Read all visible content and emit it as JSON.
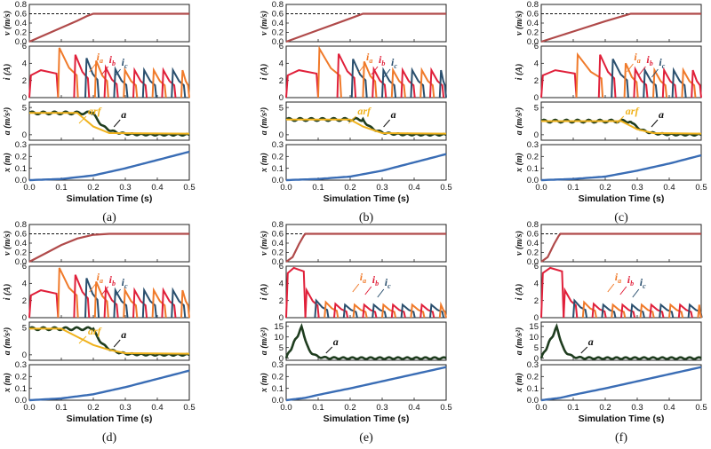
{
  "figure": {
    "ylabels": {
      "v": "v (m/s)",
      "i": "i (A)",
      "a": "a (m/s²)",
      "x": "x (m)"
    },
    "xlabel": "Simulation Time (s)",
    "colors": {
      "v": "#b04a4a",
      "x": "#3a6db5",
      "acc": "#1f3d1f",
      "arf": "#f0b21c",
      "ia": "#f07a2a",
      "ib": "#e0203a",
      "ic": "#2a4f6e"
    }
  },
  "chart_data": [
    {
      "type": "line",
      "caption": "(a)",
      "phase_time": 0.2,
      "arf_level": 4.0,
      "xlim": [
        0,
        0.5
      ],
      "xticks": [
        0.0,
        0.1,
        0.2,
        0.3,
        0.4,
        0.5
      ],
      "v": {
        "ylim": [
          0,
          0.8
        ],
        "yticks": [
          0.0,
          0.2,
          0.4,
          0.6,
          0.8
        ],
        "reference": 0.6,
        "series": [
          {
            "x": [
              0,
              0.05,
              0.1,
              0.15,
              0.18,
              0.2,
              0.5
            ],
            "y": [
              0,
              0.15,
              0.3,
              0.45,
              0.55,
              0.6,
              0.6
            ]
          }
        ]
      },
      "i": {
        "ylim": [
          0,
          6
        ],
        "yticks": [
          0,
          2,
          4,
          6
        ],
        "labels": [
          "ia",
          "ib",
          "ic"
        ],
        "pulses_t": [
          0.09,
          0.14,
          0.175,
          0.205,
          0.235,
          0.265,
          0.295,
          0.325,
          0.355,
          0.385,
          0.415,
          0.445,
          0.475
        ],
        "pulses_peak": [
          5.8,
          5.0,
          4.6,
          4.3,
          3.5,
          3.3,
          3.2,
          3.2,
          3.2,
          3.2,
          3.2,
          3.2,
          3.2
        ]
      },
      "a": {
        "ylim": [
          -1,
          6
        ],
        "yticks": [
          0,
          5
        ],
        "labels": [
          "arf",
          "a"
        ],
        "arf": {
          "x": [
            0,
            0.15,
            0.2,
            0.25,
            0.5
          ],
          "y": [
            4.0,
            4.0,
            1.5,
            0.3,
            0.2
          ]
        }
      },
      "x": {
        "ylim": [
          0,
          0.3
        ],
        "yticks": [
          0.0,
          0.1,
          0.2,
          0.3
        ],
        "series": [
          {
            "x": [
              0,
              0.1,
              0.2,
              0.3,
              0.4,
              0.5
            ],
            "y": [
              0,
              0.01,
              0.04,
              0.1,
              0.17,
              0.24
            ]
          }
        ]
      }
    },
    {
      "type": "line",
      "caption": "(b)",
      "phase_time": 0.24,
      "arf_level": 2.8,
      "xlim": [
        0,
        0.5
      ],
      "xticks": [
        0.0,
        0.1,
        0.2,
        0.3,
        0.4,
        0.5
      ],
      "v": {
        "ylim": [
          0,
          0.8
        ],
        "yticks": [
          0.0,
          0.2,
          0.4,
          0.6,
          0.8
        ],
        "reference": 0.6,
        "series": [
          {
            "x": [
              0,
              0.1,
              0.2,
              0.24,
              0.5
            ],
            "y": [
              0,
              0.25,
              0.5,
              0.6,
              0.6
            ]
          }
        ]
      },
      "i": {
        "ylim": [
          0,
          6
        ],
        "yticks": [
          0,
          2,
          4,
          6
        ],
        "labels": [
          "ia",
          "ib",
          "ic"
        ],
        "pulses_t": [
          0.1,
          0.16,
          0.205,
          0.24,
          0.27,
          0.3,
          0.33,
          0.36,
          0.39,
          0.42,
          0.45,
          0.48
        ],
        "pulses_peak": [
          5.7,
          5.1,
          4.5,
          4.2,
          3.3,
          3.2,
          3.2,
          3.2,
          3.2,
          3.2,
          3.2,
          3.2
        ]
      },
      "a": {
        "ylim": [
          -1,
          6
        ],
        "yticks": [
          0,
          5
        ],
        "labels": [
          "arf",
          "a"
        ],
        "arf": {
          "x": [
            0,
            0.2,
            0.24,
            0.3,
            0.5
          ],
          "y": [
            2.8,
            2.8,
            1.5,
            0.3,
            0.2
          ]
        }
      },
      "x": {
        "ylim": [
          0,
          0.3
        ],
        "yticks": [
          0.0,
          0.1,
          0.2,
          0.3
        ],
        "series": [
          {
            "x": [
              0,
              0.1,
              0.2,
              0.3,
              0.4,
              0.5
            ],
            "y": [
              0,
              0.01,
              0.03,
              0.08,
              0.15,
              0.22
            ]
          }
        ]
      }
    },
    {
      "type": "line",
      "caption": "(c)",
      "phase_time": 0.28,
      "arf_level": 2.5,
      "xlim": [
        0,
        0.5
      ],
      "xticks": [
        0.0,
        0.1,
        0.2,
        0.3,
        0.4,
        0.5
      ],
      "v": {
        "ylim": [
          0,
          0.8
        ],
        "yticks": [
          0.0,
          0.2,
          0.4,
          0.6,
          0.8
        ],
        "reference": 0.6,
        "series": [
          {
            "x": [
              0,
              0.1,
              0.2,
              0.28,
              0.5
            ],
            "y": [
              0,
              0.22,
              0.44,
              0.6,
              0.6
            ]
          }
        ]
      },
      "i": {
        "ylim": [
          0,
          6
        ],
        "yticks": [
          0,
          2,
          4,
          6
        ],
        "labels": [
          "ia",
          "ib",
          "ic"
        ],
        "pulses_t": [
          0.11,
          0.18,
          0.22,
          0.26,
          0.29,
          0.32,
          0.35,
          0.38,
          0.41,
          0.44,
          0.47
        ],
        "pulses_peak": [
          5.0,
          5.0,
          4.5,
          4.0,
          3.3,
          3.2,
          3.2,
          3.2,
          3.2,
          3.2,
          3.2
        ]
      },
      "a": {
        "ylim": [
          -1,
          6
        ],
        "yticks": [
          0,
          5
        ],
        "labels": [
          "arf",
          "a"
        ],
        "arf": {
          "x": [
            0,
            0.25,
            0.3,
            0.35,
            0.5
          ],
          "y": [
            2.5,
            2.5,
            1.0,
            0.3,
            0.2
          ]
        }
      },
      "x": {
        "ylim": [
          0,
          0.3
        ],
        "yticks": [
          0.0,
          0.1,
          0.2,
          0.3
        ],
        "series": [
          {
            "x": [
              0,
              0.1,
              0.2,
              0.3,
              0.4,
              0.5
            ],
            "y": [
              0,
              0.01,
              0.03,
              0.08,
              0.14,
              0.21
            ]
          }
        ]
      }
    },
    {
      "type": "line",
      "caption": "(d)",
      "phase_time": 0.2,
      "arf_level": 4.8,
      "xlim": [
        0,
        0.5
      ],
      "xticks": [
        0.0,
        0.1,
        0.2,
        0.3,
        0.4,
        0.5
      ],
      "v": {
        "ylim": [
          0,
          0.8
        ],
        "yticks": [
          0.0,
          0.2,
          0.4,
          0.6,
          0.8
        ],
        "reference": 0.6,
        "series": [
          {
            "x": [
              0,
              0.05,
              0.1,
              0.15,
              0.2,
              0.25,
              0.5
            ],
            "y": [
              0,
              0.18,
              0.36,
              0.5,
              0.58,
              0.6,
              0.6
            ]
          }
        ]
      },
      "i": {
        "ylim": [
          0,
          6
        ],
        "yticks": [
          0,
          2,
          4,
          6
        ],
        "labels": [
          "ia",
          "ib",
          "ic"
        ],
        "pulses_t": [
          0.09,
          0.14,
          0.175,
          0.205,
          0.235,
          0.265,
          0.295,
          0.325,
          0.355,
          0.385,
          0.415,
          0.445,
          0.475
        ],
        "pulses_peak": [
          5.8,
          5.0,
          4.6,
          4.2,
          3.4,
          3.2,
          3.2,
          3.2,
          3.2,
          3.2,
          3.2,
          3.2,
          3.2
        ]
      },
      "a": {
        "ylim": [
          -1,
          6
        ],
        "yticks": [
          0,
          5
        ],
        "labels": [
          "arf",
          "a"
        ],
        "arf": {
          "x": [
            0,
            0.1,
            0.15,
            0.2,
            0.25,
            0.3,
            0.5
          ],
          "y": [
            4.8,
            4.8,
            3.3,
            1.8,
            0.9,
            0.3,
            0.2
          ]
        }
      },
      "x": {
        "ylim": [
          0,
          0.3
        ],
        "yticks": [
          0.0,
          0.1,
          0.2,
          0.3
        ],
        "series": [
          {
            "x": [
              0,
              0.1,
              0.2,
              0.3,
              0.4,
              0.5
            ],
            "y": [
              0,
              0.015,
              0.05,
              0.11,
              0.18,
              0.25
            ]
          }
        ]
      }
    },
    {
      "type": "line",
      "caption": "(e)",
      "phase_time": 0.06,
      "arf_level": null,
      "xlim": [
        0,
        0.5
      ],
      "xticks": [
        0.0,
        0.1,
        0.2,
        0.3,
        0.4,
        0.5
      ],
      "v": {
        "ylim": [
          0,
          0.8
        ],
        "yticks": [
          0.0,
          0.2,
          0.4,
          0.6,
          0.8
        ],
        "reference": 0.6,
        "series": [
          {
            "x": [
              0,
              0.02,
              0.04,
              0.055,
              0.06,
              0.5
            ],
            "y": [
              0,
              0.1,
              0.38,
              0.56,
              0.6,
              0.6
            ]
          }
        ]
      },
      "i": {
        "ylim": [
          0,
          6
        ],
        "yticks": [
          0,
          2,
          4,
          6
        ],
        "labels": [
          "ia",
          "ib",
          "ic"
        ],
        "pulses_t": [
          0.06,
          0.09,
          0.12,
          0.15,
          0.18,
          0.21,
          0.24,
          0.27,
          0.3,
          0.33,
          0.36,
          0.39,
          0.42,
          0.45,
          0.48
        ],
        "pulses_peak": [
          3.2,
          2.0,
          1.8,
          1.6,
          1.5,
          1.5,
          1.5,
          1.5,
          1.5,
          1.5,
          1.5,
          1.5,
          1.5,
          1.5,
          1.5
        ]
      },
      "a": {
        "ylim": [
          -1,
          17
        ],
        "yticks": [
          0,
          5,
          10,
          15
        ],
        "labels": [
          "a"
        ],
        "arf": null
      },
      "x": {
        "ylim": [
          0,
          0.3
        ],
        "yticks": [
          0.0,
          0.1,
          0.2,
          0.3
        ],
        "series": [
          {
            "x": [
              0,
              0.06,
              0.1,
              0.2,
              0.3,
              0.4,
              0.5
            ],
            "y": [
              0,
              0.02,
              0.045,
              0.1,
              0.16,
              0.22,
              0.28
            ]
          }
        ]
      }
    },
    {
      "type": "line",
      "caption": "(f)",
      "phase_time": 0.06,
      "arf_level": null,
      "xlim": [
        0,
        0.5
      ],
      "xticks": [
        0.0,
        0.1,
        0.2,
        0.3,
        0.4,
        0.5
      ],
      "v": {
        "ylim": [
          0,
          0.8
        ],
        "yticks": [
          0.0,
          0.2,
          0.4,
          0.6,
          0.8
        ],
        "reference": 0.6,
        "series": [
          {
            "x": [
              0,
              0.02,
              0.04,
              0.055,
              0.06,
              0.5
            ],
            "y": [
              0,
              0.1,
              0.38,
              0.56,
              0.6,
              0.6
            ]
          }
        ]
      },
      "i": {
        "ylim": [
          0,
          6
        ],
        "yticks": [
          0,
          2,
          4,
          6
        ],
        "labels": [
          "ia",
          "ib",
          "ic"
        ],
        "pulses_t": [
          0.07,
          0.1,
          0.13,
          0.16,
          0.19,
          0.22,
          0.25,
          0.28,
          0.31,
          0.34,
          0.37,
          0.4,
          0.43,
          0.46,
          0.49
        ],
        "pulses_peak": [
          3.2,
          2.0,
          1.8,
          1.6,
          1.5,
          1.5,
          1.5,
          1.5,
          1.5,
          1.5,
          1.5,
          1.5,
          1.5,
          1.5,
          1.5
        ]
      },
      "a": {
        "ylim": [
          -1,
          17
        ],
        "yticks": [
          0,
          5,
          10,
          15
        ],
        "labels": [
          "a"
        ],
        "arf": null
      },
      "x": {
        "ylim": [
          0,
          0.3
        ],
        "yticks": [
          0.0,
          0.1,
          0.2,
          0.3
        ],
        "series": [
          {
            "x": [
              0,
              0.06,
              0.1,
              0.2,
              0.3,
              0.4,
              0.5
            ],
            "y": [
              0,
              0.02,
              0.045,
              0.1,
              0.16,
              0.22,
              0.28
            ]
          }
        ]
      }
    }
  ]
}
